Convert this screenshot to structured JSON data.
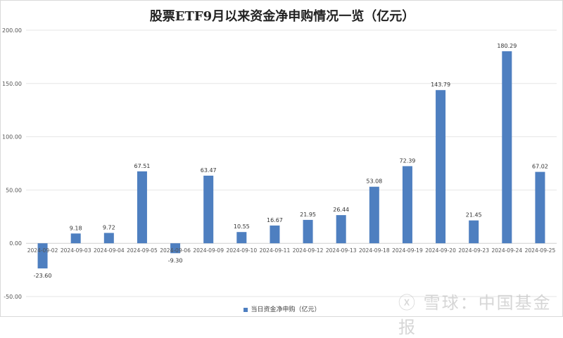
{
  "chart_data": {
    "type": "bar",
    "title": "股票ETF9月以来资金净申购情况一览（亿元）",
    "xlabel": "",
    "ylabel": "",
    "ylim": [
      -50,
      200
    ],
    "yticks": [
      "-50.00",
      "0.00",
      "50.00",
      "100.00",
      "150.00",
      "200.00"
    ],
    "grid": true,
    "legend_position": "bottom",
    "categories": [
      "2024-09-02",
      "2024-09-03",
      "2024-09-04",
      "2024-09-05",
      "2024-09-06",
      "2024-09-09",
      "2024-09-10",
      "2024-09-11",
      "2024-09-12",
      "2024-09-13",
      "2024-09-18",
      "2024-09-19",
      "2024-09-20",
      "2024-09-23",
      "2024-09-24",
      "2024-09-25"
    ],
    "series": [
      {
        "name": "当日资金净申购（亿元）",
        "color": "#4e7fc0",
        "values": [
          -23.6,
          9.18,
          9.72,
          67.51,
          -9.3,
          63.47,
          10.55,
          16.67,
          21.95,
          26.44,
          53.08,
          72.39,
          143.79,
          21.45,
          180.29,
          67.02
        ],
        "labels": [
          "-23.60",
          "9.18",
          "9.72",
          "67.51",
          "-9.30",
          "63.47",
          "10.55",
          "16.67",
          "21.95",
          "26.44",
          "53.08",
          "72.39",
          "143.79",
          "21.45",
          "180.29",
          "67.02"
        ]
      }
    ]
  },
  "watermark": "雪球：中国基金报"
}
